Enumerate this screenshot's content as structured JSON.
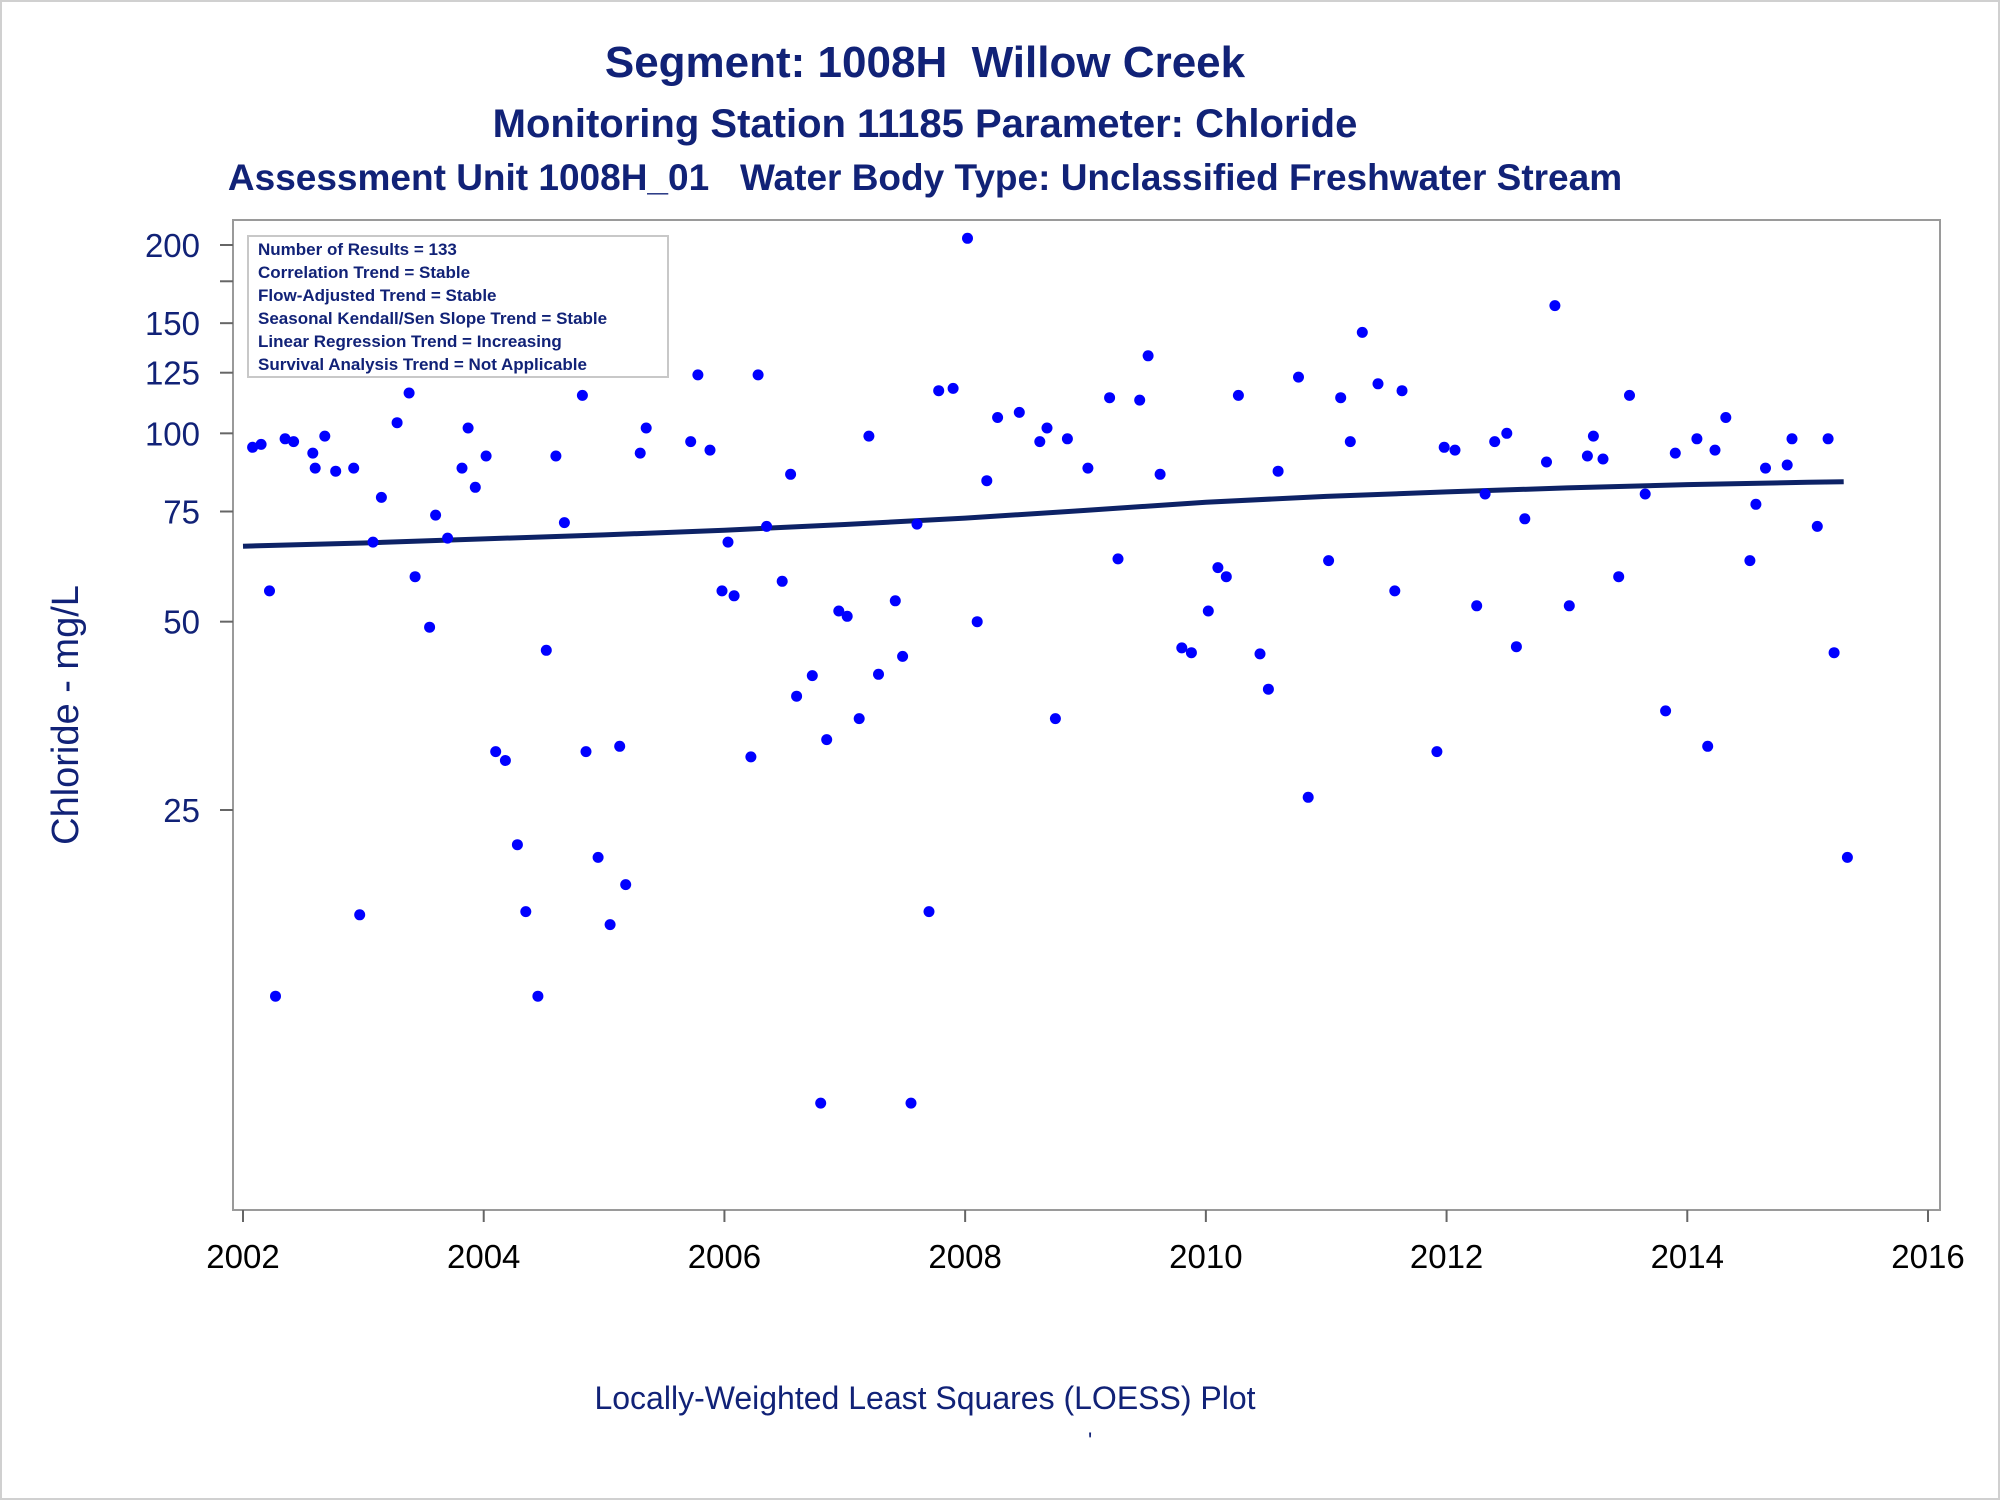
{
  "titles": {
    "line1": "Segment: 1008H  Willow Creek",
    "line2": "Monitoring Station 11185 Parameter: Chloride",
    "line3": "Assessment Unit 1008H_01   Water Body Type: Unclassified Freshwater Stream"
  },
  "footnote": "Locally-Weighted Least Squares (LOESS) Plot",
  "footnote_mark": "'",
  "colors": {
    "text": "#112277",
    "points": "#0000ff",
    "line": "#0d2266",
    "frame": "#9a9a9a"
  },
  "chart_data": {
    "type": "scatter",
    "ylabel": "Chloride - mg/L",
    "y_scale": "log",
    "ylim": [
      8,
      210
    ],
    "xlim": [
      2002,
      2016
    ],
    "x_ticks": [
      "2002",
      "2004",
      "2006",
      "2008",
      "2010",
      "2012",
      "2014",
      "2016"
    ],
    "y_ticks": [
      "25",
      "50",
      "75",
      "100",
      "125",
      "150",
      "200"
    ],
    "legend_placement": "top-left",
    "stats": [
      "Number of Results = 133",
      "Correlation Trend = Stable",
      "Flow-Adjusted Trend = Stable",
      "Seasonal Kendall/Sen Slope Trend = Stable",
      "Linear Regression Trend = Increasing",
      "Survival Analysis Trend = Not Applicable"
    ],
    "points": [
      [
        2002.08,
        95
      ],
      [
        2002.15,
        96
      ],
      [
        2002.22,
        56
      ],
      [
        2002.27,
        12.6
      ],
      [
        2002.35,
        98
      ],
      [
        2002.42,
        97
      ],
      [
        2002.58,
        93
      ],
      [
        2002.6,
        88
      ],
      [
        2002.68,
        99
      ],
      [
        2002.77,
        87
      ],
      [
        2002.92,
        88
      ],
      [
        2002.97,
        17
      ],
      [
        2003.08,
        67
      ],
      [
        2003.15,
        79
      ],
      [
        2003.28,
        104
      ],
      [
        2003.38,
        116
      ],
      [
        2003.43,
        59
      ],
      [
        2003.55,
        49
      ],
      [
        2003.6,
        74
      ],
      [
        2003.7,
        68
      ],
      [
        2003.82,
        88
      ],
      [
        2003.87,
        102
      ],
      [
        2003.93,
        82
      ],
      [
        2004.02,
        92
      ],
      [
        2004.1,
        31
      ],
      [
        2004.18,
        30
      ],
      [
        2004.28,
        22
      ],
      [
        2004.35,
        17.2
      ],
      [
        2004.45,
        12.6
      ],
      [
        2004.52,
        45
      ],
      [
        2004.6,
        92
      ],
      [
        2004.67,
        72
      ],
      [
        2004.82,
        115
      ],
      [
        2004.85,
        31
      ],
      [
        2004.95,
        21
      ],
      [
        2005.05,
        16.4
      ],
      [
        2005.13,
        31.6
      ],
      [
        2005.18,
        19
      ],
      [
        2005.3,
        93
      ],
      [
        2005.35,
        102
      ],
      [
        2005.72,
        97
      ],
      [
        2005.78,
        124
      ],
      [
        2005.88,
        94
      ],
      [
        2005.98,
        56
      ],
      [
        2006.03,
        67
      ],
      [
        2006.08,
        55
      ],
      [
        2006.22,
        30.4
      ],
      [
        2006.28,
        124
      ],
      [
        2006.35,
        71
      ],
      [
        2006.48,
        58
      ],
      [
        2006.55,
        86
      ],
      [
        2006.6,
        38
      ],
      [
        2006.73,
        41
      ],
      [
        2006.8,
        8.5
      ],
      [
        2006.85,
        32.4
      ],
      [
        2006.95,
        52
      ],
      [
        2007.02,
        51
      ],
      [
        2007.12,
        35
      ],
      [
        2007.2,
        99
      ],
      [
        2007.28,
        41.2
      ],
      [
        2007.42,
        54
      ],
      [
        2007.48,
        44
      ],
      [
        2007.55,
        8.5
      ],
      [
        2007.6,
        71.6
      ],
      [
        2007.7,
        17.2
      ],
      [
        2007.78,
        117
      ],
      [
        2007.9,
        118
      ],
      [
        2008.02,
        205
      ],
      [
        2008.1,
        50
      ],
      [
        2008.18,
        84
      ],
      [
        2008.27,
        106
      ],
      [
        2008.45,
        108
      ],
      [
        2008.62,
        97
      ],
      [
        2008.68,
        102
      ],
      [
        2008.75,
        35
      ],
      [
        2008.85,
        98
      ],
      [
        2009.02,
        88
      ],
      [
        2009.2,
        114
      ],
      [
        2009.27,
        63
      ],
      [
        2009.45,
        113
      ],
      [
        2009.52,
        133
      ],
      [
        2009.62,
        86
      ],
      [
        2009.8,
        45.4
      ],
      [
        2009.88,
        44.6
      ],
      [
        2010.02,
        52
      ],
      [
        2010.1,
        61
      ],
      [
        2010.17,
        59
      ],
      [
        2010.27,
        115
      ],
      [
        2010.45,
        44.4
      ],
      [
        2010.52,
        39
      ],
      [
        2010.6,
        87
      ],
      [
        2010.77,
        123
      ],
      [
        2010.85,
        26.2
      ],
      [
        2011.02,
        62.6
      ],
      [
        2011.12,
        114
      ],
      [
        2011.2,
        97
      ],
      [
        2011.3,
        145
      ],
      [
        2011.43,
        120
      ],
      [
        2011.57,
        56
      ],
      [
        2011.63,
        117
      ],
      [
        2011.92,
        31
      ],
      [
        2011.98,
        95
      ],
      [
        2012.07,
        94
      ],
      [
        2012.25,
        53
      ],
      [
        2012.32,
        80
      ],
      [
        2012.4,
        97
      ],
      [
        2012.5,
        100
      ],
      [
        2012.58,
        45.6
      ],
      [
        2012.65,
        73
      ],
      [
        2012.83,
        90
      ],
      [
        2012.9,
        160
      ],
      [
        2013.02,
        53
      ],
      [
        2013.17,
        92
      ],
      [
        2013.22,
        99
      ],
      [
        2013.3,
        91
      ],
      [
        2013.43,
        59
      ],
      [
        2013.52,
        115
      ],
      [
        2013.65,
        80
      ],
      [
        2013.82,
        36
      ],
      [
        2013.9,
        93
      ],
      [
        2014.08,
        98
      ],
      [
        2014.17,
        31.6
      ],
      [
        2014.23,
        94
      ],
      [
        2014.32,
        106
      ],
      [
        2014.52,
        62.6
      ],
      [
        2014.57,
        77
      ],
      [
        2014.65,
        88
      ],
      [
        2014.83,
        89
      ],
      [
        2014.87,
        98
      ],
      [
        2015.08,
        71
      ],
      [
        2015.17,
        98
      ],
      [
        2015.22,
        44.6
      ],
      [
        2015.33,
        21
      ]
    ],
    "loess_line": [
      [
        2002.0,
        66
      ],
      [
        2003.0,
        66.8
      ],
      [
        2004.0,
        67.8
      ],
      [
        2005.0,
        68.8
      ],
      [
        2006.0,
        70.0
      ],
      [
        2007.0,
        71.5
      ],
      [
        2008.0,
        73.2
      ],
      [
        2009.0,
        75.3
      ],
      [
        2010.0,
        77.6
      ],
      [
        2011.0,
        79.3
      ],
      [
        2012.0,
        80.6
      ],
      [
        2013.0,
        81.8
      ],
      [
        2014.0,
        82.8
      ],
      [
        2015.0,
        83.5
      ],
      [
        2015.3,
        83.7
      ]
    ]
  }
}
